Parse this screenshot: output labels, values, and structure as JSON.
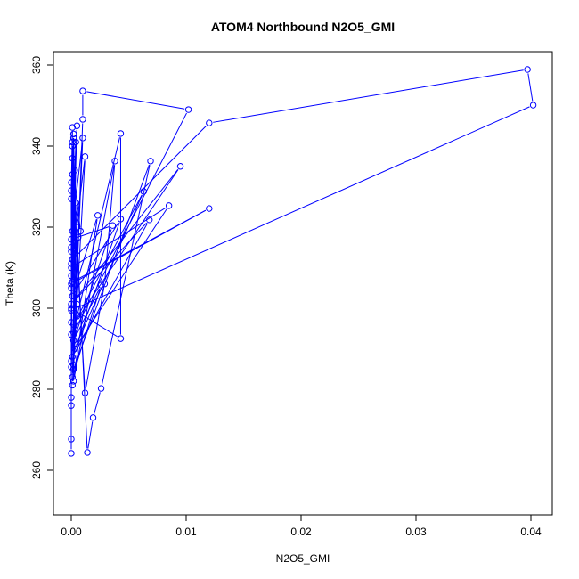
{
  "chart_data": {
    "type": "line",
    "title": "ATOM4 Northbound N2O5_GMI",
    "xlabel": "N2O5_GMI",
    "ylabel": "Theta (K)",
    "xlim": [
      -0.0015,
      0.042
    ],
    "ylim": [
      249,
      363
    ],
    "xticks": [
      0,
      0.01,
      0.02,
      0.03,
      0.04
    ],
    "xtick_labels": [
      "0.00",
      "0.01",
      "0.02",
      "0.03",
      "0.04"
    ],
    "yticks": [
      260,
      280,
      300,
      320,
      340,
      360
    ],
    "ytick_labels": [
      "260",
      "280",
      "300",
      "320",
      "340",
      "360"
    ],
    "grid": false,
    "series_color": "#0000ff",
    "marker": "open-circle",
    "points": [
      [
        0,
        264.2
      ],
      [
        0,
        278
      ],
      [
        0.0001,
        341
      ],
      [
        0.0014,
        264.4
      ],
      [
        0.0019,
        273
      ],
      [
        0.0026,
        280.2
      ],
      [
        0.0069,
        336.3
      ],
      [
        0.0002,
        285
      ],
      [
        0.0002,
        343
      ],
      [
        0.0005,
        298
      ],
      [
        0.0043,
        343.1
      ],
      [
        0.0043,
        292.5
      ],
      [
        0,
        300
      ],
      [
        0.0001,
        333
      ],
      [
        0.0012,
        279.1
      ],
      [
        0.0029,
        306
      ],
      [
        0.0038,
        336.3
      ],
      [
        0.0002,
        282
      ],
      [
        0.0004,
        341
      ],
      [
        0,
        310
      ],
      [
        0.0085,
        325.3
      ],
      [
        0.0003,
        290
      ],
      [
        0.0063,
        328.8
      ],
      [
        0.0002,
        296
      ],
      [
        0.0095,
        335
      ],
      [
        0,
        301
      ],
      [
        0.0068,
        321.8
      ],
      [
        0.0001,
        288
      ],
      [
        0.0043,
        322
      ],
      [
        0.0001,
        303
      ],
      [
        0.0023,
        322.9
      ],
      [
        0.0001,
        281
      ],
      [
        0.001,
        342
      ],
      [
        0,
        317
      ],
      [
        0.0036,
        320.4
      ],
      [
        0.0002,
        292
      ],
      [
        0.0026,
        305.7
      ],
      [
        0.0001,
        283
      ],
      [
        0.0004,
        326
      ],
      [
        0,
        306
      ],
      [
        0.012,
        324.6
      ],
      [
        0.0001,
        306.5
      ],
      [
        0.0006,
        317.5
      ],
      [
        0.0002,
        294
      ],
      [
        0.0102,
        349.0
      ],
      [
        0.001,
        353.6
      ],
      [
        0.001,
        346.6
      ],
      [
        0.0002,
        286
      ],
      [
        0.0012,
        337.4
      ],
      [
        0.0001,
        312
      ],
      [
        0.012,
        345.7
      ],
      [
        0.0397,
        358.9
      ],
      [
        0.0402,
        350.1
      ],
      [
        0,
        299.5
      ],
      [
        0.0005,
        345
      ],
      [
        0.0001,
        319
      ],
      [
        0.0005,
        301
      ],
      [
        0.0001,
        337
      ],
      [
        0.0008,
        319
      ],
      [
        0,
        329
      ],
      [
        0.0001,
        344.6
      ],
      [
        0,
        314
      ],
      [
        0,
        327
      ],
      [
        0,
        308
      ],
      [
        0.0002,
        342
      ],
      [
        0,
        296.5
      ],
      [
        0.0001,
        340
      ],
      [
        0,
        305
      ],
      [
        0.0005,
        320
      ],
      [
        0,
        285.5
      ],
      [
        0,
        331
      ],
      [
        0,
        293.5
      ],
      [
        0.0003,
        334
      ],
      [
        0,
        311
      ],
      [
        0,
        287
      ],
      [
        0,
        315
      ],
      [
        0,
        267.7
      ],
      [
        0,
        276
      ]
    ]
  }
}
